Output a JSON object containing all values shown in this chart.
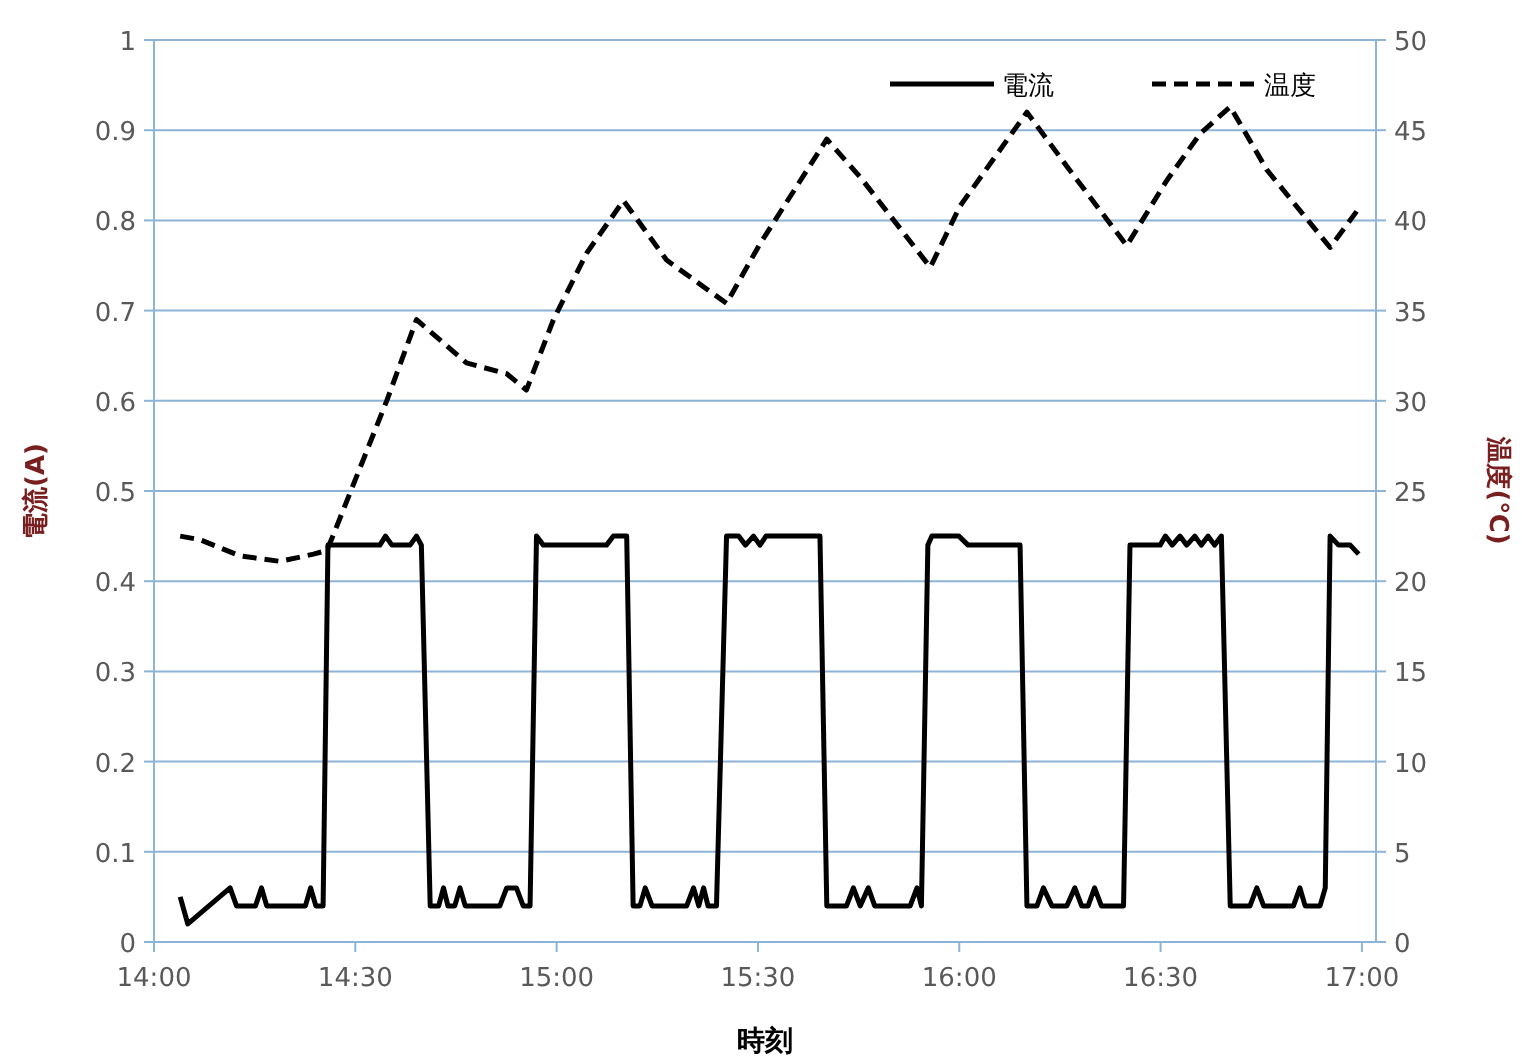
{
  "chart_data": {
    "type": "line",
    "xlabel": "時刻",
    "ylabel": "電流(A)",
    "y2label": "温度(℃)",
    "xlim": [
      14,
      17.035
    ],
    "xticks": [
      {
        "value": 14,
        "label": "14:00"
      },
      {
        "value": 14.5,
        "label": "14:30"
      },
      {
        "value": 15,
        "label": "15:00"
      },
      {
        "value": 15.5,
        "label": "15:30"
      },
      {
        "value": 16,
        "label": "16:00"
      },
      {
        "value": 16.5,
        "label": "16:30"
      },
      {
        "value": 17,
        "label": "17:00"
      }
    ],
    "ylim": [
      0,
      1
    ],
    "yticks": [
      0,
      0.1,
      0.2,
      0.3,
      0.4,
      0.5,
      0.6,
      0.7,
      0.8,
      0.9,
      1
    ],
    "y2lim": [
      0,
      50
    ],
    "y2ticks": [
      0,
      5,
      10,
      15,
      20,
      25,
      30,
      35,
      40,
      45,
      50
    ],
    "grid": "y",
    "legend": "top right",
    "series": [
      {
        "name": "電流",
        "color": "#000000",
        "line_style": "solid",
        "x": [
          14.065,
          14.084,
          14.189,
          14.205,
          14.252,
          14.267,
          14.28,
          14.376,
          14.389,
          14.402,
          14.42,
          14.432,
          14.561,
          14.575,
          14.591,
          14.636,
          14.652,
          14.664,
          14.686,
          14.707,
          14.719,
          14.73,
          14.747,
          14.76,
          14.773,
          14.859,
          14.876,
          14.9,
          14.917,
          14.934,
          14.95,
          14.967,
          15.124,
          15.141,
          15.174,
          15.19,
          15.207,
          15.22,
          15.237,
          15.323,
          15.34,
          15.353,
          15.365,
          15.376,
          15.397,
          15.422,
          15.452,
          15.469,
          15.489,
          15.505,
          15.52,
          15.654,
          15.671,
          15.72,
          15.737,
          15.754,
          15.774,
          15.79,
          15.878,
          15.895,
          15.906,
          15.922,
          15.932,
          15.952,
          15.999,
          16.022,
          16.151,
          16.168,
          16.193,
          16.209,
          16.23,
          16.267,
          16.287,
          16.304,
          16.32,
          16.336,
          16.353,
          16.408,
          16.424,
          16.499,
          16.512,
          16.529,
          16.548,
          16.565,
          16.585,
          16.601,
          16.618,
          16.634,
          16.651,
          16.673,
          16.722,
          16.739,
          16.756,
          16.83,
          16.846,
          16.859,
          16.896,
          16.909,
          16.921,
          16.942,
          16.971,
          16.992
        ],
        "values": [
          0.05,
          0.02,
          0.06,
          0.04,
          0.04,
          0.06,
          0.04,
          0.04,
          0.06,
          0.04,
          0.04,
          0.44,
          0.44,
          0.45,
          0.44,
          0.44,
          0.45,
          0.44,
          0.04,
          0.04,
          0.06,
          0.04,
          0.04,
          0.06,
          0.04,
          0.04,
          0.06,
          0.06,
          0.04,
          0.04,
          0.45,
          0.44,
          0.44,
          0.45,
          0.45,
          0.04,
          0.04,
          0.06,
          0.04,
          0.04,
          0.06,
          0.04,
          0.06,
          0.04,
          0.04,
          0.45,
          0.45,
          0.44,
          0.45,
          0.44,
          0.45,
          0.45,
          0.04,
          0.04,
          0.06,
          0.04,
          0.06,
          0.04,
          0.04,
          0.06,
          0.04,
          0.44,
          0.45,
          0.45,
          0.45,
          0.44,
          0.44,
          0.04,
          0.04,
          0.06,
          0.04,
          0.04,
          0.06,
          0.04,
          0.04,
          0.06,
          0.04,
          0.04,
          0.44,
          0.44,
          0.45,
          0.44,
          0.45,
          0.44,
          0.45,
          0.44,
          0.45,
          0.44,
          0.45,
          0.04,
          0.04,
          0.06,
          0.04,
          0.04,
          0.06,
          0.04,
          0.04,
          0.06,
          0.45,
          0.44,
          0.44,
          0.43
        ]
      },
      {
        "name": "温度",
        "color": "#000000",
        "line_style": "dashed",
        "axis": "y2",
        "x": [
          14.065,
          14.114,
          14.214,
          14.313,
          14.396,
          14.429,
          14.446,
          14.578,
          14.652,
          14.776,
          14.876,
          14.925,
          14.992,
          15.075,
          15.166,
          15.273,
          15.422,
          15.505,
          15.671,
          15.754,
          15.928,
          16.002,
          16.168,
          16.267,
          16.416,
          16.515,
          16.598,
          16.673,
          16.764,
          16.921,
          16.987
        ],
        "values": [
          22.5,
          22.3,
          21.4,
          21.1,
          21.5,
          21.7,
          22.6,
          30.0,
          34.5,
          32.1,
          31.5,
          30.6,
          34.5,
          38.2,
          41.1,
          37.8,
          35.4,
          38.7,
          44.5,
          42.4,
          37.4,
          40.8,
          46.0,
          43.0,
          38.6,
          42.2,
          44.8,
          46.3,
          42.8,
          38.5,
          40.5
        ]
      }
    ]
  }
}
